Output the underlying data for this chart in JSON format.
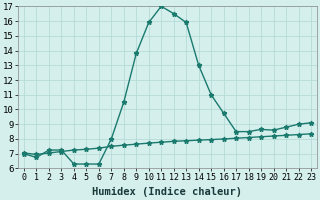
{
  "x": [
    0,
    1,
    2,
    3,
    4,
    5,
    6,
    7,
    8,
    9,
    10,
    11,
    12,
    13,
    14,
    15,
    16,
    17,
    18,
    19,
    20,
    21,
    22,
    23
  ],
  "y_curve": [
    7.0,
    6.75,
    7.25,
    7.25,
    6.3,
    6.3,
    6.3,
    8.0,
    10.5,
    13.8,
    15.9,
    17.0,
    16.5,
    15.9,
    13.0,
    11.0,
    9.75,
    8.5,
    8.5,
    8.65,
    8.6,
    8.8,
    9.0,
    9.1
  ],
  "y_flat": [
    7.05,
    6.95,
    7.05,
    7.15,
    7.25,
    7.3,
    7.38,
    7.5,
    7.58,
    7.65,
    7.72,
    7.78,
    7.84,
    7.88,
    7.92,
    7.96,
    8.0,
    8.05,
    8.1,
    8.15,
    8.2,
    8.25,
    8.3,
    8.35
  ],
  "line_color": "#1a7a6e",
  "bg_color": "#d4efec",
  "grid_color": "#b2d8d4",
  "xlabel": "Humidex (Indice chaleur)",
  "ylim": [
    6,
    17
  ],
  "xlim": [
    -0.5,
    23.5
  ],
  "yticks": [
    6,
    7,
    8,
    9,
    10,
    11,
    12,
    13,
    14,
    15,
    16,
    17
  ],
  "xticks": [
    0,
    1,
    2,
    3,
    4,
    5,
    6,
    7,
    8,
    9,
    10,
    11,
    12,
    13,
    14,
    15,
    16,
    17,
    18,
    19,
    20,
    21,
    22,
    23
  ],
  "marker": "*",
  "markersize": 3.5,
  "linewidth": 1.0,
  "tick_fontsize": 6.5,
  "xlabel_fontsize": 7.5
}
